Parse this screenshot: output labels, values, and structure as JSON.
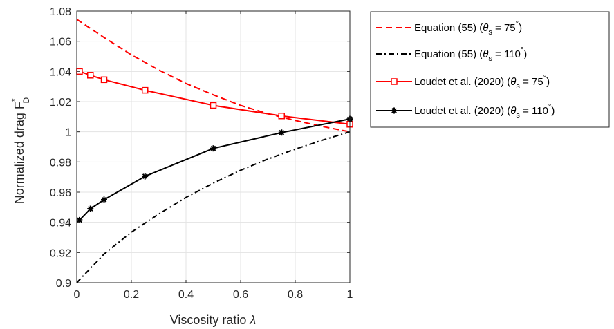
{
  "chart_data": {
    "type": "line",
    "title": "",
    "xlabel": {
      "text": "Viscosity ratio ",
      "symbol": "λ"
    },
    "ylabel": {
      "text": "Normalized drag F",
      "sup": "*",
      "sub": "D"
    },
    "xlim": [
      0,
      1
    ],
    "ylim": [
      0.9,
      1.08
    ],
    "xticks": [
      0,
      0.2,
      0.4,
      0.6,
      0.8,
      1
    ],
    "xtick_labels": [
      "0",
      "0.2",
      "0.4",
      "0.6",
      "0.8",
      "1"
    ],
    "yticks": [
      0.9,
      0.92,
      0.94,
      0.96,
      0.98,
      1,
      1.02,
      1.04,
      1.06,
      1.08
    ],
    "ytick_labels": [
      "0.9",
      "0.92",
      "0.94",
      "0.96",
      "0.98",
      "1",
      "1.02",
      "1.04",
      "1.06",
      "1.08"
    ],
    "grid": true,
    "legend_position": "outside-right",
    "series": [
      {
        "name": "Equation (55) (θs = 75°)",
        "legend": {
          "prefix": "Equation (55) (",
          "theta": "θ",
          "sub": "s",
          "mid": " = 75",
          "deg": "°",
          "suffix": ")"
        },
        "color": "#ff0000",
        "dash": "dashed",
        "marker": "none",
        "x": [
          0,
          0.1,
          0.2,
          0.3,
          0.4,
          0.5,
          0.6,
          0.7,
          0.8,
          0.9,
          1.0
        ],
        "y": [
          1.0745,
          1.0625,
          1.051,
          1.041,
          1.032,
          1.0245,
          1.0175,
          1.012,
          1.0075,
          1.0035,
          1.0
        ]
      },
      {
        "name": "Equation (55) (θs = 110°)",
        "legend": {
          "prefix": "Equation (55) (",
          "theta": "θ",
          "sub": "s",
          "mid": " = 110",
          "deg": "°",
          "suffix": ")"
        },
        "color": "#000000",
        "dash": "dashdot",
        "marker": "none",
        "x": [
          0,
          0.1,
          0.2,
          0.3,
          0.4,
          0.5,
          0.6,
          0.7,
          0.8,
          0.9,
          1.0
        ],
        "y": [
          0.9,
          0.919,
          0.9335,
          0.9455,
          0.9565,
          0.966,
          0.9745,
          0.982,
          0.9885,
          0.9945,
          1.0
        ]
      },
      {
        "name": "Loudet et al. (2020) (θs = 75°)",
        "legend": {
          "prefix": "Loudet et al. (2020) (",
          "theta": "θ",
          "sub": "s",
          "mid": " = 75",
          "deg": "°",
          "suffix": ")"
        },
        "color": "#ff0000",
        "dash": "solid",
        "marker": "square",
        "x": [
          0.01,
          0.05,
          0.1,
          0.25,
          0.5,
          0.75,
          1.0
        ],
        "y": [
          1.04,
          1.0375,
          1.0345,
          1.0275,
          1.0175,
          1.0105,
          1.005
        ]
      },
      {
        "name": "Loudet et al. (2020) (θs = 110°)",
        "legend": {
          "prefix": "Loudet et al. (2020) (",
          "theta": "θ",
          "sub": "s",
          "mid": " = 110",
          "deg": "°",
          "suffix": ")"
        },
        "color": "#000000",
        "dash": "solid",
        "marker": "asterisk",
        "x": [
          0.01,
          0.05,
          0.1,
          0.25,
          0.5,
          0.75,
          1.0
        ],
        "y": [
          0.9415,
          0.949,
          0.955,
          0.9705,
          0.989,
          0.9995,
          1.0085
        ]
      }
    ]
  }
}
